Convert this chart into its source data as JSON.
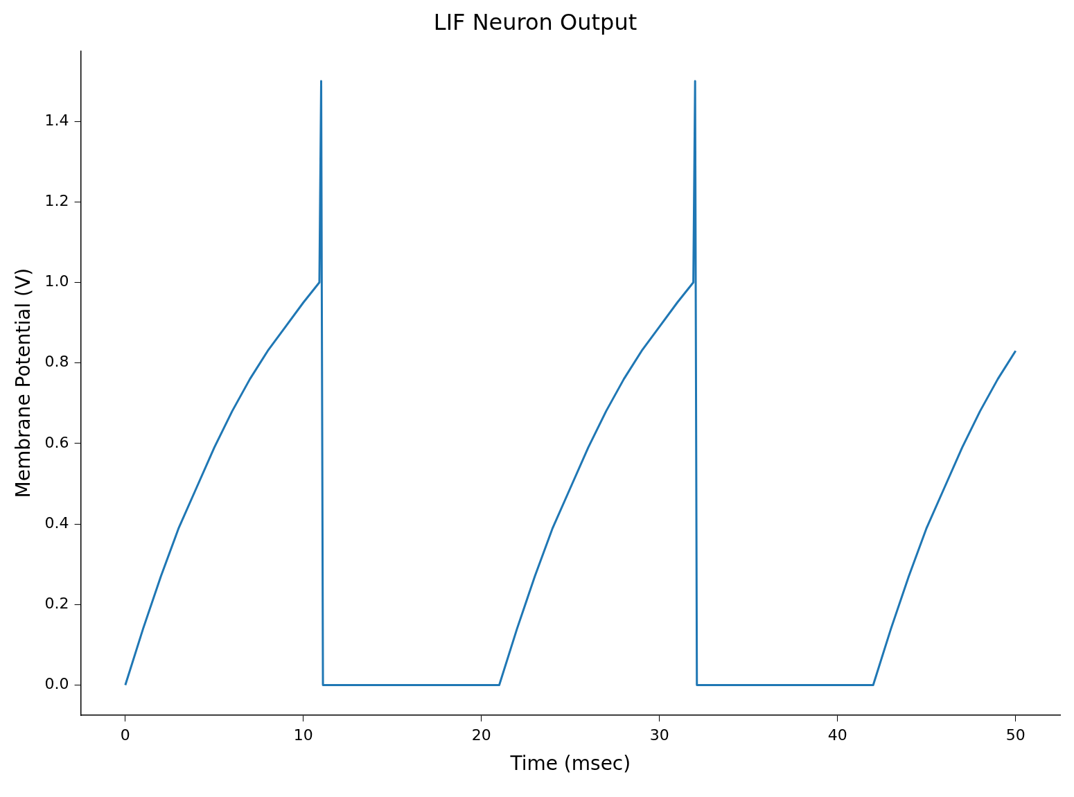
{
  "chart_data": {
    "type": "line",
    "title": "LIF Neuron Output",
    "xlabel": "Time (msec)",
    "ylabel": "Membrane Potential (V)",
    "series": [
      {
        "color": "#1f77b4",
        "x": [
          0,
          1,
          2,
          3,
          4,
          5,
          6,
          7,
          8,
          9,
          10,
          10.9,
          11,
          11.1,
          21,
          22,
          23,
          24,
          25,
          26,
          27,
          28,
          29,
          30,
          31,
          31.9,
          32,
          32.1,
          42,
          43,
          44,
          45,
          46,
          47,
          48,
          49,
          50
        ],
        "values": [
          0,
          0.14,
          0.27,
          0.39,
          0.49,
          0.59,
          0.68,
          0.76,
          0.83,
          0.89,
          0.95,
          1.0,
          1.5,
          0,
          0,
          0.14,
          0.27,
          0.39,
          0.49,
          0.59,
          0.68,
          0.76,
          0.83,
          0.89,
          0.95,
          1.0,
          1.5,
          0,
          0,
          0.14,
          0.27,
          0.39,
          0.49,
          0.59,
          0.68,
          0.76,
          0.83
        ]
      }
    ],
    "xlim": [
      -2.5,
      52.5
    ],
    "xticks": [
      0,
      10,
      20,
      30,
      40,
      50
    ],
    "ylim": [
      -0.075,
      1.575
    ],
    "yticks": [
      {
        "value": 0,
        "label": "0.0"
      },
      0.2,
      0.4,
      0.6,
      0.8,
      {
        "value": 1,
        "label": "1.0"
      },
      1.2,
      1.4
    ],
    "grid": false,
    "legend": false,
    "marker": "none",
    "line_style": "solid"
  }
}
